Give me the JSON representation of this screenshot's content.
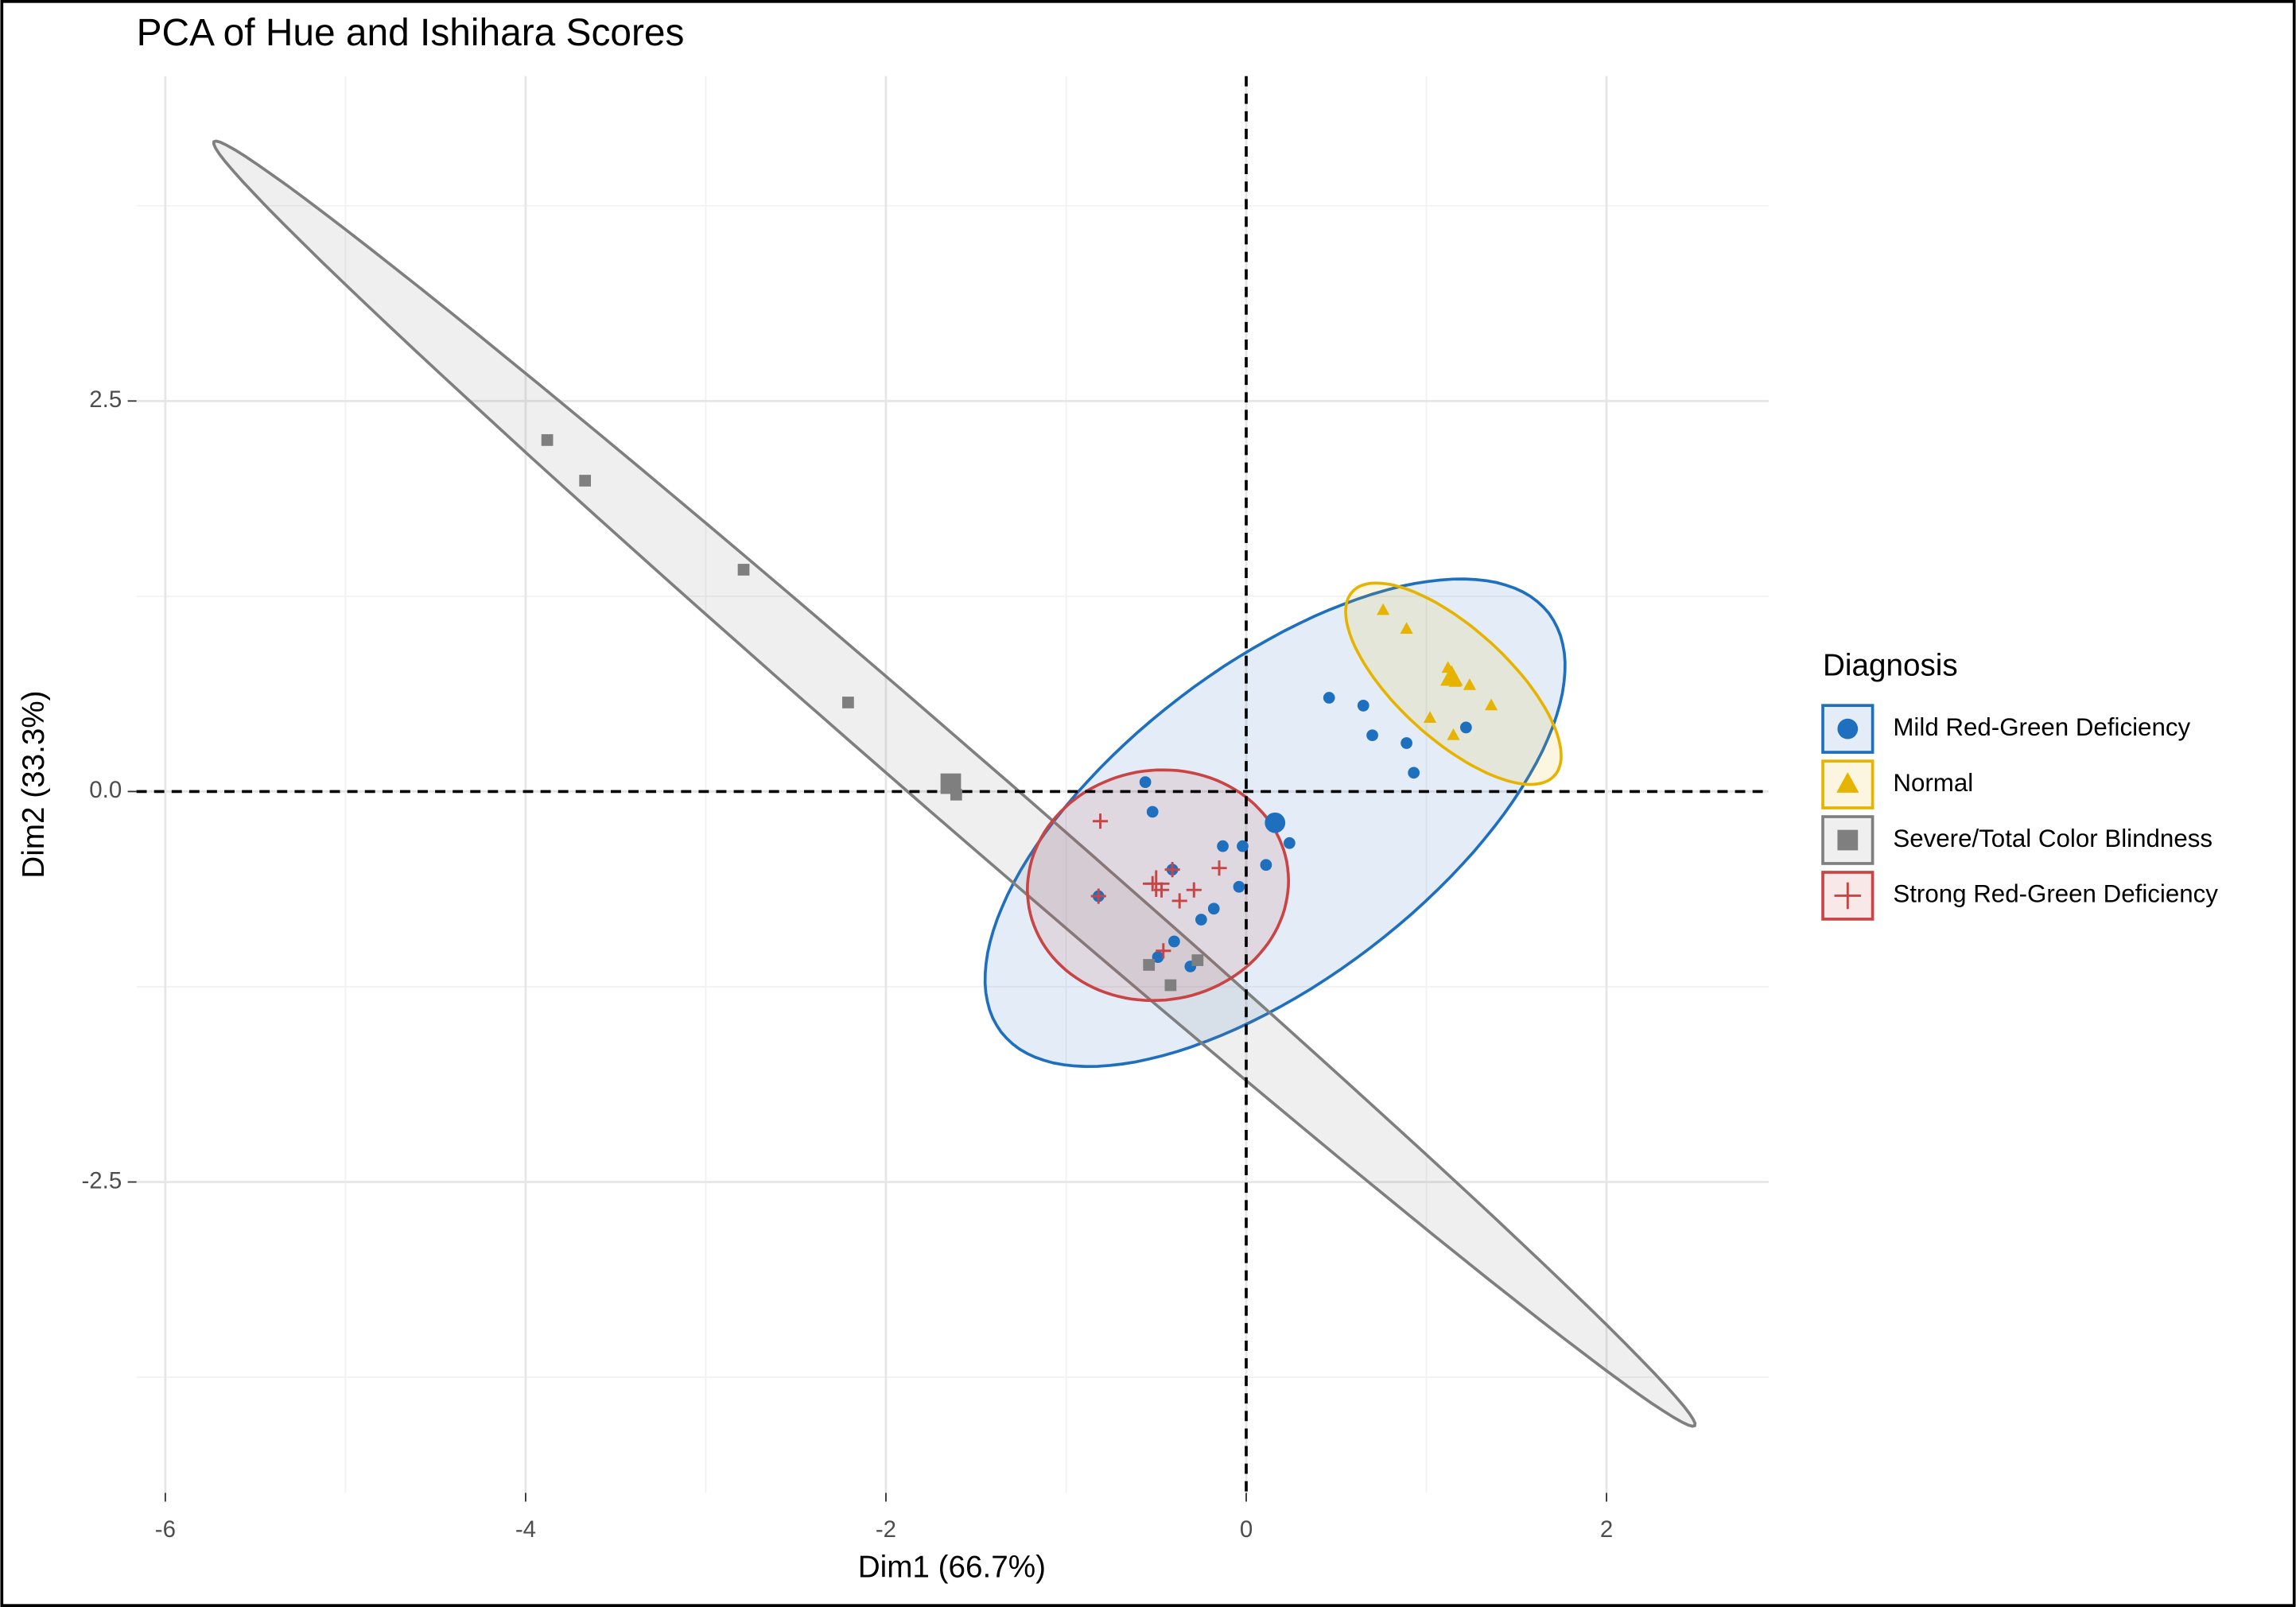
{
  "chart_data": {
    "type": "scatter",
    "title": "PCA of Hue and Ishihara Scores",
    "x_label": "Dim1 (66.7%)",
    "y_label": "Dim2 (33.3%)",
    "legend_title": "Diagnosis",
    "legend_position": "right",
    "xlim": [
      -6.16,
      2.9
    ],
    "ylim": [
      -4.49,
      4.58
    ],
    "xticks": [
      -6,
      -4,
      -2,
      0,
      2
    ],
    "yticks": [
      -2.5,
      {
        "value": 0,
        "label": "0.0"
      },
      2.5
    ],
    "grid": true,
    "minor_grid": true,
    "hline": 0,
    "vline": 0,
    "series": [
      {
        "name": "Mild Red-Green Deficiency",
        "color": "#1f6fbf",
        "shape": "circle",
        "x": [
          0.46,
          0.65,
          0.7,
          0.89,
          0.93,
          1.22,
          -0.56,
          -0.52,
          -0.13,
          -0.02,
          0.11,
          0.24,
          -0.04,
          -0.18,
          -0.25,
          -0.41,
          -0.82,
          -0.4,
          -0.49,
          -0.31
        ],
        "y": [
          0.6,
          0.55,
          0.36,
          0.31,
          0.12,
          0.41,
          0.06,
          -0.13,
          -0.35,
          -0.35,
          -0.47,
          -0.33,
          -0.61,
          -0.75,
          -0.82,
          -0.5,
          -0.67,
          -0.96,
          -1.06,
          -1.12
        ],
        "centroid": [
          0.16,
          -0.2
        ],
        "ellipse": {
          "center": [
            0.16,
            -0.2
          ],
          "axes": [
            [
              1.52,
              1.34
            ],
            [
              0.53,
              -0.8
            ]
          ]
        }
      },
      {
        "name": "Normal",
        "color": "#e6b400",
        "shape": "triangle",
        "x": [
          0.76,
          0.89,
          1.12,
          1.16,
          1.24,
          1.02,
          1.15,
          1.36
        ],
        "y": [
          1.16,
          1.04,
          0.79,
          0.7,
          0.68,
          0.47,
          0.36,
          0.55
        ],
        "centroid": [
          1.14,
          0.73
        ],
        "ellipse": {
          "center": [
            1.15,
            0.69
          ],
          "axes": [
            [
              0.56,
              -0.59
            ],
            [
              -0.21,
              -0.26
            ]
          ]
        }
      },
      {
        "name": "Severe/Total Color Blindness",
        "color": "#7f7f7f",
        "shape": "square",
        "x": [
          -3.88,
          -3.67,
          -2.79,
          -2.21,
          -1.61,
          -0.54,
          -0.42,
          -0.27
        ],
        "y": [
          2.25,
          1.99,
          1.42,
          0.57,
          -0.02,
          -1.11,
          -1.24,
          -1.08
        ],
        "centroid": [
          -1.64,
          0.05
        ],
        "ellipse": {
          "center": [
            -1.62,
            0.05
          ],
          "axes": [
            [
              4.11,
              -4.11
            ],
            [
              -0.13,
              -0.18
            ]
          ]
        }
      },
      {
        "name": "Strong Red-Green Deficiency",
        "color": "#c94444",
        "shape": "plus",
        "x": [
          -0.81,
          -0.82,
          -0.52,
          -0.47,
          -0.37,
          -0.29,
          -0.15,
          -0.41,
          -0.46
        ],
        "y": [
          -0.19,
          -0.67,
          -0.59,
          -0.63,
          -0.7,
          -0.63,
          -0.49,
          -0.5,
          -1.02
        ],
        "centroid": [
          -0.5,
          -0.59
        ],
        "ellipse": {
          "center": [
            -0.49,
            -0.6
          ],
          "axes": [
            [
              0.72,
              0.11
            ],
            [
              0.08,
              -0.73
            ]
          ]
        }
      }
    ]
  }
}
